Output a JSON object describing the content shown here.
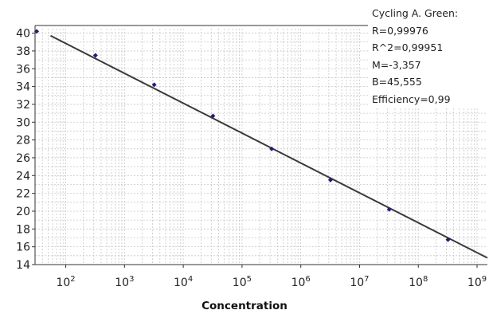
{
  "chart_data": {
    "type": "scatter",
    "x_scale": "log10",
    "xlabel": "Concentration",
    "ylabel": "",
    "xlim": [
      30,
      1500000000
    ],
    "ylim": [
      14,
      40.5
    ],
    "y_ticks": [
      14,
      16,
      18,
      20,
      22,
      24,
      26,
      28,
      30,
      32,
      34,
      36,
      38,
      40
    ],
    "x_ticks": [
      {
        "value": 100,
        "base": "10",
        "exp": "2"
      },
      {
        "value": 1000,
        "base": "10",
        "exp": "3"
      },
      {
        "value": 10000,
        "base": "10",
        "exp": "4"
      },
      {
        "value": 100000,
        "base": "10",
        "exp": "5"
      },
      {
        "value": 1000000,
        "base": "10",
        "exp": "6"
      },
      {
        "value": 10000000,
        "base": "10",
        "exp": "7"
      },
      {
        "value": 100000000,
        "base": "10",
        "exp": "8"
      },
      {
        "value": 1000000000,
        "base": "10",
        "exp": "9"
      }
    ],
    "points": [
      {
        "x": 32,
        "y": 40.2
      },
      {
        "x": 320,
        "y": 37.5
      },
      {
        "x": 3200,
        "y": 34.2
      },
      {
        "x": 32000,
        "y": 30.7
      },
      {
        "x": 320000,
        "y": 27.0
      },
      {
        "x": 3200000,
        "y": 23.5
      },
      {
        "x": 32000000,
        "y": 20.2
      },
      {
        "x": 320000000,
        "y": 16.8
      }
    ],
    "fit_line": {
      "slope": -3.357,
      "intercept": 45.555
    },
    "grid": true,
    "colors": {
      "point": "#1f1f7a",
      "line": "#3a3a3a",
      "grid": "#c8c8c8",
      "axis": "#333333"
    },
    "legend": {
      "position": "top-right",
      "lines": [
        "Cycling A. Green:",
        "R=0,99976",
        "R^2=0,99951",
        "M=-3,357",
        "B=45,555",
        "Efficiency=0,99"
      ]
    }
  }
}
